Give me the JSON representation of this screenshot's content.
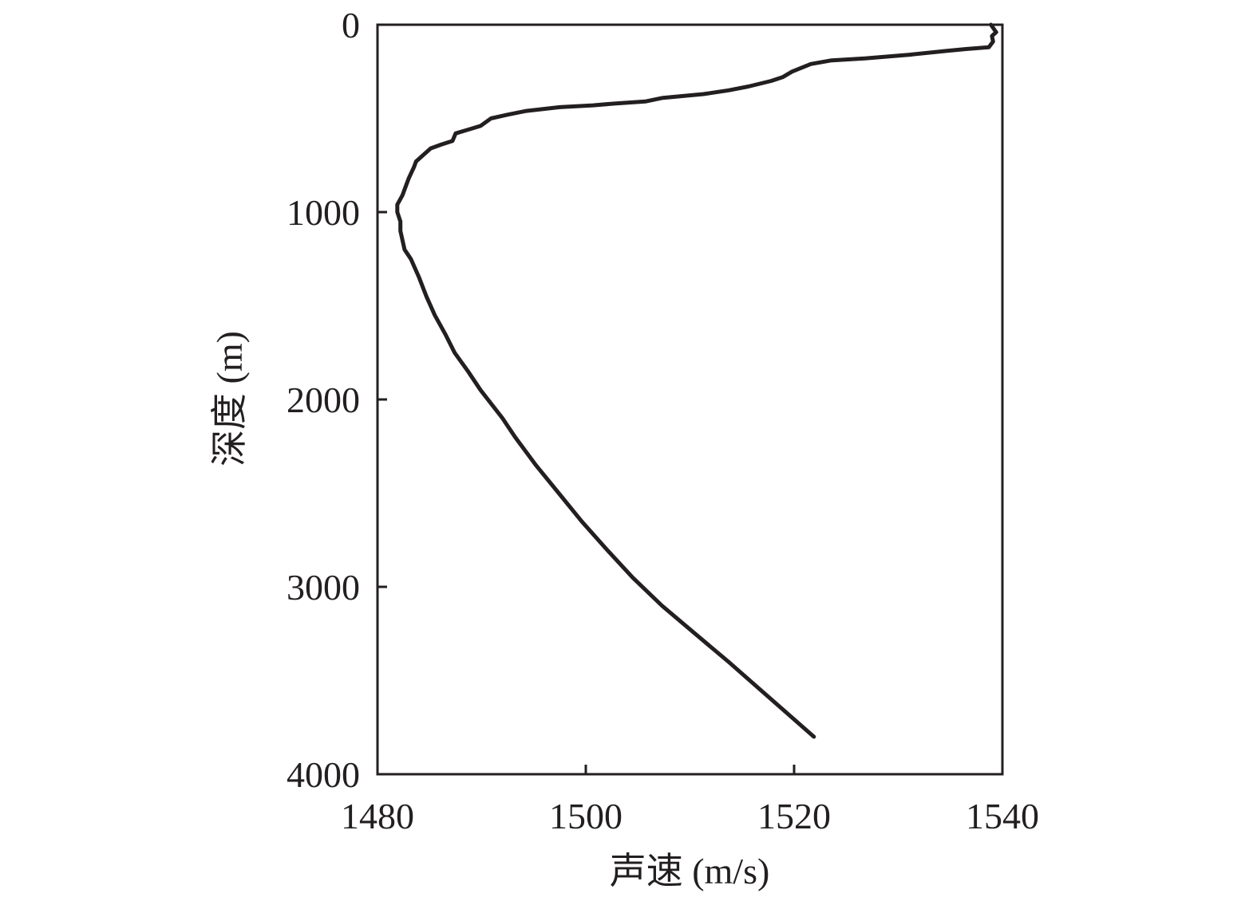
{
  "chart_data": {
    "type": "line",
    "title": "",
    "xlabel": "声速 (m/s)",
    "ylabel": "深度 (m)",
    "xlim": [
      1480,
      1540
    ],
    "ylim": [
      0,
      4000
    ],
    "y_inverted": true,
    "x_ticks": [
      "1480",
      "1500",
      "1520",
      "1540"
    ],
    "y_ticks": [
      "0",
      "1000",
      "2000",
      "3000",
      "4000"
    ],
    "grid": false,
    "legend": "none",
    "line_color": "#231f20",
    "series": [
      {
        "x": [
          1538.9,
          1539.4,
          1539.0,
          1539.1,
          1538.7,
          1536.5,
          1534.6,
          1531.1,
          1526.8,
          1523.6,
          1521.6,
          1519.8,
          1518.9,
          1517.8,
          1515.6,
          1513.7,
          1511.3,
          1507.4,
          1505.7,
          1502.9,
          1500.7,
          1497.5,
          1494.3,
          1492.5,
          1490.9,
          1489.9,
          1488.7,
          1487.5,
          1487.2,
          1486.1,
          1485.1,
          1484.3,
          1483.7,
          1483.5,
          1483.0,
          1482.6,
          1482.4,
          1482.1,
          1481.9,
          1481.9,
          1482.2,
          1482.2,
          1482.4,
          1482.6,
          1483.2,
          1484.0,
          1484.7,
          1485.5,
          1486.5,
          1487.4,
          1488.7,
          1489.9,
          1490.6,
          1492.0,
          1493.2,
          1495.2,
          1497.4,
          1499.6,
          1502.0,
          1504.5,
          1507.3,
          1510.5,
          1513.7,
          1517.8,
          1521.9
        ],
        "y": [
          0,
          40,
          60,
          90,
          120,
          130,
          140,
          160,
          180,
          190,
          210,
          250,
          280,
          300,
          330,
          350,
          370,
          390,
          410,
          420,
          430,
          440,
          460,
          480,
          500,
          540,
          560,
          580,
          620,
          640,
          660,
          700,
          730,
          760,
          820,
          880,
          910,
          940,
          960,
          1000,
          1050,
          1100,
          1150,
          1200,
          1250,
          1350,
          1450,
          1550,
          1650,
          1750,
          1850,
          1950,
          2000,
          2100,
          2200,
          2350,
          2500,
          2650,
          2800,
          2950,
          3100,
          3250,
          3400,
          3600,
          3800
        ]
      }
    ]
  }
}
